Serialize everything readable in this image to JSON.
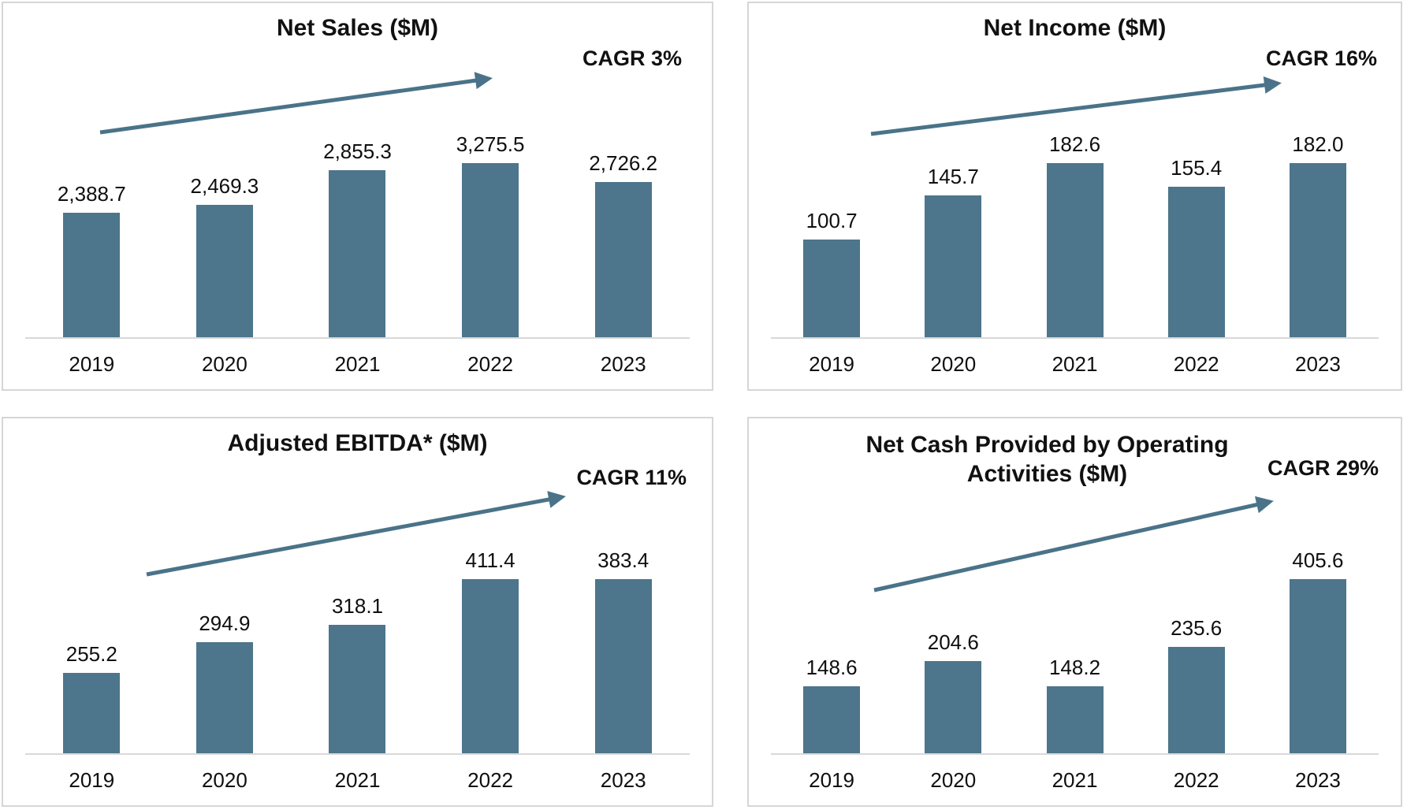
{
  "colors": {
    "bar": "#4d758b",
    "arrow": "#4a7389",
    "baseline": "#d9d9d9",
    "panel_border": "#d6d6d6",
    "text": "#111111"
  },
  "chart_data": [
    {
      "type": "bar",
      "title": "Net Sales ($M)",
      "cagr_label": "CAGR 3%",
      "annotation": "upward trend arrow",
      "categories": [
        "2019",
        "2020",
        "2021",
        "2022",
        "2023"
      ],
      "values": [
        2388.7,
        2469.3,
        2855.3,
        3275.5,
        2726.2
      ],
      "value_labels": [
        "2,388.7",
        "2,469.3",
        "2,855.3",
        "3,275.5",
        "2,726.2"
      ],
      "xlabel": "",
      "ylabel": "",
      "ylim": [
        1000,
        3280
      ],
      "grid": false,
      "legend": false
    },
    {
      "type": "bar",
      "title": "Net Income ($M)",
      "cagr_label": "CAGR 16%",
      "annotation": "upward trend arrow",
      "categories": [
        "2019",
        "2020",
        "2021",
        "2022",
        "2023"
      ],
      "values": [
        100.7,
        145.7,
        182.6,
        155.4,
        182.0
      ],
      "value_labels": [
        "100.7",
        "145.7",
        "182.6",
        "155.4",
        "182.0"
      ],
      "xlabel": "",
      "ylabel": "",
      "ylim": [
        0,
        211
      ],
      "grid": false,
      "legend": false
    },
    {
      "type": "bar",
      "title": "Adjusted EBITDA* ($M)",
      "cagr_label": "CAGR 11%",
      "annotation": "upward trend arrow",
      "categories": [
        "2019",
        "2020",
        "2021",
        "2022",
        "2023"
      ],
      "values": [
        255.2,
        294.9,
        318.1,
        411.4,
        383.4
      ],
      "value_labels": [
        "255.2",
        "294.9",
        "318.1",
        "411.4",
        "383.4"
      ],
      "xlabel": "",
      "ylabel": "",
      "ylim": [
        150,
        418
      ],
      "grid": false,
      "legend": false
    },
    {
      "type": "bar",
      "title": "Net Cash Provided by Operating Activities ($M)",
      "cagr_label": "CAGR 29%",
      "annotation": "upward trend arrow",
      "categories": [
        "2019",
        "2020",
        "2021",
        "2022",
        "2023"
      ],
      "values": [
        148.6,
        204.6,
        148.2,
        235.6,
        405.6
      ],
      "value_labels": [
        "148.6",
        "204.6",
        "148.2",
        "235.6",
        "405.6"
      ],
      "xlabel": "",
      "ylabel": "",
      "ylim": [
        0,
        455
      ],
      "grid": false,
      "legend": false
    }
  ]
}
